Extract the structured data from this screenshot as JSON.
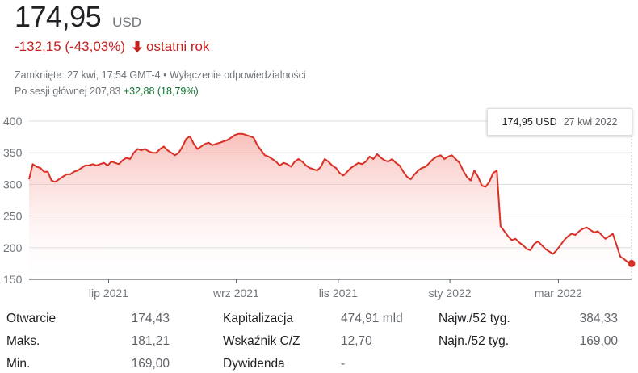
{
  "header": {
    "price": "174,95",
    "currency": "USD",
    "change": "-132,15 (-43,03%)",
    "period": "ostatni rok",
    "closed_info": "Zamknięte: 27 kwi, 17:54 GMT-4 •",
    "disclaimer_link": "Wyłączenie odpowiedzialności",
    "after_hours_label": "Po sesji głównej",
    "after_hours_price": "207,83",
    "after_hours_change": "+32,88 (18,79%)"
  },
  "tooltip": {
    "value": "174,95 USD",
    "date": "27 kwi 2022"
  },
  "colors": {
    "line": "#d93025",
    "negative": "#c5221f",
    "positive": "#137333",
    "grid": "#dadce0"
  },
  "chart_data": {
    "type": "area",
    "y_ticks": [
      "400",
      "350",
      "300",
      "250",
      "200",
      "150"
    ],
    "ylim": [
      150,
      400
    ],
    "x_tick_labels": [
      "lip 2021",
      "wrz 2021",
      "lis 2021",
      "sty 2022",
      "mar 2022"
    ],
    "x_tick_positions": [
      0.155,
      0.355,
      0.515,
      0.69,
      0.86
    ],
    "series": [
      {
        "name": "",
        "values": [
          308,
          332,
          328,
          326,
          320,
          320,
          306,
          304,
          308,
          312,
          316,
          316,
          320,
          322,
          326,
          330,
          330,
          332,
          330,
          332,
          334,
          330,
          336,
          334,
          332,
          338,
          342,
          340,
          350,
          356,
          354,
          356,
          352,
          350,
          350,
          356,
          360,
          354,
          350,
          346,
          350,
          360,
          372,
          376,
          364,
          356,
          360,
          364,
          366,
          362,
          364,
          366,
          368,
          370,
          374,
          378,
          380,
          380,
          378,
          376,
          374,
          362,
          354,
          346,
          344,
          340,
          336,
          330,
          334,
          332,
          328,
          336,
          340,
          336,
          330,
          326,
          324,
          322,
          328,
          340,
          336,
          330,
          326,
          318,
          314,
          320,
          326,
          330,
          334,
          332,
          336,
          344,
          340,
          348,
          342,
          338,
          336,
          340,
          334,
          330,
          320,
          312,
          308,
          316,
          322,
          326,
          328,
          334,
          340,
          344,
          346,
          340,
          344,
          346,
          340,
          334,
          322,
          312,
          306,
          322,
          312,
          298,
          296,
          304,
          318,
          322,
          234,
          226,
          218,
          212,
          214,
          208,
          204,
          198,
          196,
          206,
          210,
          204,
          198,
          194,
          190,
          196,
          204,
          212,
          218,
          222,
          220,
          226,
          230,
          232,
          228,
          224,
          226,
          220,
          214,
          218,
          222,
          204,
          186,
          182,
          177,
          175
        ]
      }
    ]
  },
  "stats": [
    {
      "label": "Otwarcie",
      "value": "174,43"
    },
    {
      "label": "Maks.",
      "value": "181,21"
    },
    {
      "label": "Min.",
      "value": "169,00"
    },
    {
      "label": "Kapitalizacja",
      "value": "474,91 mld"
    },
    {
      "label": "Wskaźnik C/Z",
      "value": "12,70"
    },
    {
      "label": "Dywidenda",
      "value": "-"
    },
    {
      "label": "Najw./52 tyg.",
      "value": "384,33"
    },
    {
      "label": "Najn./52 tyg.",
      "value": "169,00"
    }
  ]
}
